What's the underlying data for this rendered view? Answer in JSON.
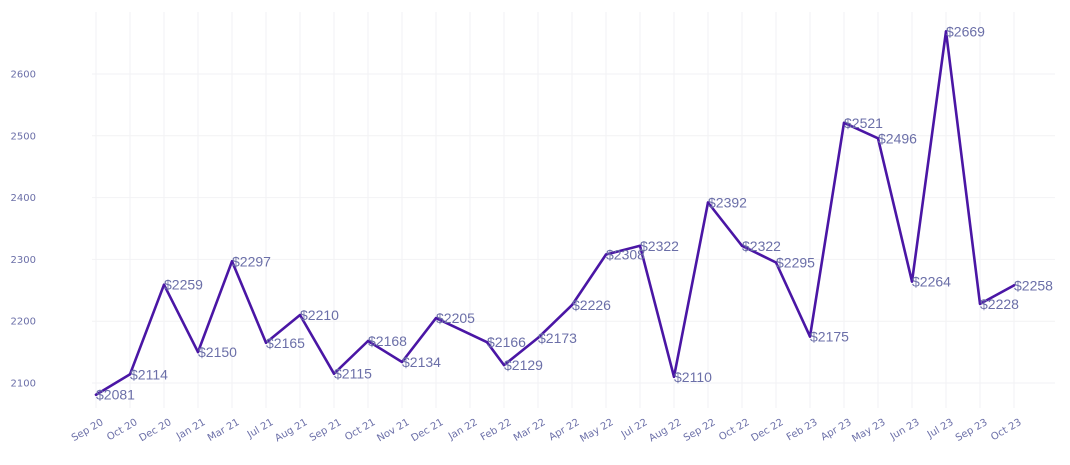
{
  "chart_data": {
    "type": "line",
    "title": "",
    "xlabel": "",
    "ylabel": "",
    "grid": true,
    "ylim": [
      2045,
      2715
    ],
    "y_ticks": [
      2100,
      2200,
      2300,
      2400,
      2500,
      2600
    ],
    "y_tick_labels": [
      "2100",
      "2200",
      "2300",
      "2400",
      "2500",
      "2600"
    ],
    "x_tick_labels": [
      "Sep 20",
      "Oct 20",
      "Dec 20",
      "Jan 21",
      "Mar 21",
      "Jul 21",
      "Aug 21",
      "Sep 21",
      "Oct 21",
      "Nov 21",
      "Dec 21",
      "Jan 22",
      "Feb 22",
      "Mar 22",
      "Apr 22",
      "May 22",
      "Jul 22",
      "Aug 22",
      "Sep 22",
      "Oct 22",
      "Dec 22",
      "Feb 23",
      "Apr 23",
      "May 23",
      "Jun 23",
      "Jul 23",
      "Sep 23",
      "Oct 23"
    ],
    "series": [
      {
        "color": "#4a16a5",
        "points": [
          {
            "i": 0,
            "value": 2081,
            "label": "$2081"
          },
          {
            "i": 1,
            "value": 2114,
            "label": "$2114"
          },
          {
            "i": 2,
            "value": 2259,
            "label": "$2259"
          },
          {
            "i": 3,
            "value": 2150,
            "label": "$2150"
          },
          {
            "i": 4,
            "value": 2297,
            "label": "$2297"
          },
          {
            "i": 5,
            "value": 2165,
            "label": "$2165"
          },
          {
            "i": 6,
            "value": 2210,
            "label": "$2210"
          },
          {
            "i": 7,
            "value": 2115,
            "label": "$2115"
          },
          {
            "i": 8,
            "value": 2168,
            "label": "$2168"
          },
          {
            "i": 9,
            "value": 2134,
            "label": "$2134"
          },
          {
            "i": 10,
            "value": 2205,
            "label": "$2205"
          },
          {
            "i": 11.5,
            "value": 2166,
            "label": "$2166"
          },
          {
            "i": 12,
            "value": 2129,
            "label": "$2129"
          },
          {
            "i": 13,
            "value": 2173,
            "label": "$2173"
          },
          {
            "i": 14,
            "value": 2226,
            "label": "$2226"
          },
          {
            "i": 15,
            "value": 2308,
            "label": "$2308"
          },
          {
            "i": 16,
            "value": 2322,
            "label": "$2322"
          },
          {
            "i": 17,
            "value": 2110,
            "label": "$2110"
          },
          {
            "i": 18,
            "value": 2392,
            "label": "$2392"
          },
          {
            "i": 19,
            "value": 2322,
            "label": "$2322"
          },
          {
            "i": 20,
            "value": 2295,
            "label": "$2295"
          },
          {
            "i": 21,
            "value": 2175,
            "label": "$2175"
          },
          {
            "i": 22,
            "value": 2521,
            "label": "$2521"
          },
          {
            "i": 23,
            "value": 2496,
            "label": "$2496"
          },
          {
            "i": 24,
            "value": 2264,
            "label": "$2264"
          },
          {
            "i": 25,
            "value": 2669,
            "label": "$2669"
          },
          {
            "i": 26,
            "value": 2228,
            "label": "$2228"
          },
          {
            "i": 27,
            "value": 2258,
            "label": "$2258"
          }
        ]
      }
    ]
  }
}
